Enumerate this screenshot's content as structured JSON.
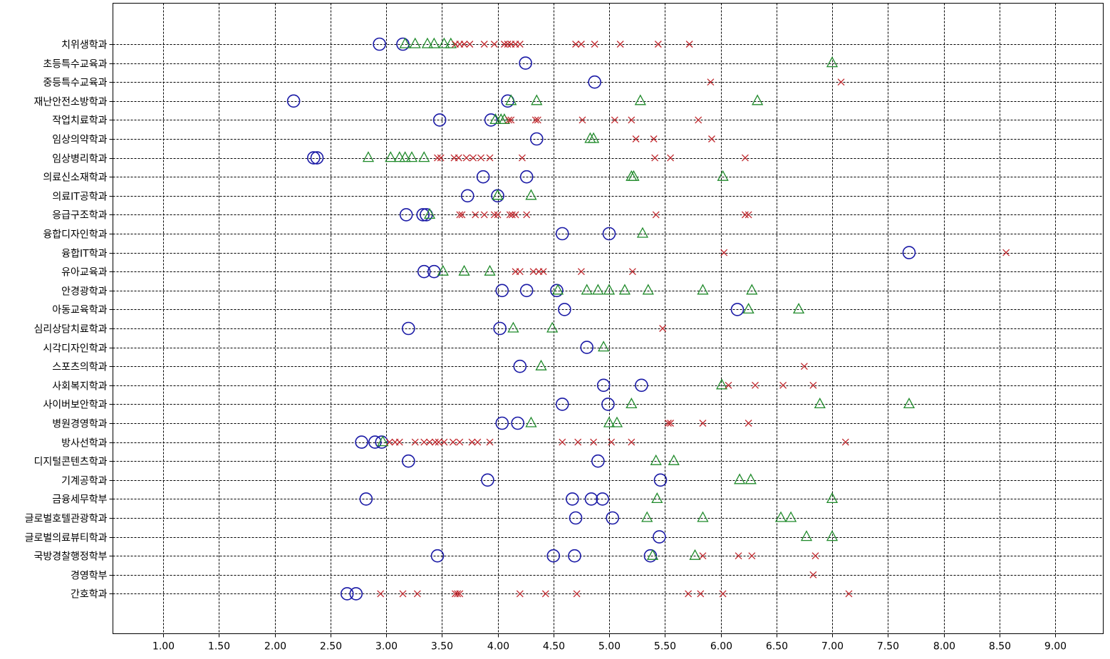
{
  "chart_data": {
    "type": "scatter",
    "title": "",
    "xlabel": "",
    "ylabel": "",
    "xlim": [
      0.55,
      9.45
    ],
    "x_ticks": [
      1.0,
      1.5,
      2.0,
      2.5,
      3.0,
      3.5,
      4.0,
      4.5,
      5.0,
      5.5,
      6.0,
      6.5,
      7.0,
      7.5,
      8.0,
      8.5,
      9.0
    ],
    "x_tick_labels": [
      "1.00",
      "1.50",
      "2.00",
      "2.50",
      "3.00",
      "3.50",
      "4.00",
      "4.50",
      "5.00",
      "5.50",
      "6.00",
      "6.50",
      "7.00",
      "7.50",
      "8.00",
      "8.50",
      "9.00"
    ],
    "grid": true,
    "legend": "none",
    "categories": [
      "치위생학과",
      "초등특수교육과",
      "중등특수교육과",
      "재난안전소방학과",
      "작업치료학과",
      "임상의약학과",
      "임상병리학과",
      "의료신소재학과",
      "의료IT공학과",
      "응급구조학과",
      "융합디자인학과",
      "융합IT학과",
      "유아교육과",
      "안경광학과",
      "아동교육학과",
      "심리상담치료학과",
      "시각디자인학과",
      "스포츠의학과",
      "사회복지학과",
      "사이버보안학과",
      "병원경영학과",
      "방사선학과",
      "디지털콘텐츠학과",
      "기계공학과",
      "금융세무학부",
      "글로벌호텔관광학과",
      "글로벌의료뷰티학과",
      "국방경찰행정학부",
      "경영학부",
      "간호학과"
    ],
    "series": [
      {
        "marker": "circle",
        "color": "#1a1aa6",
        "points": [
          {
            "category": "치위생학과",
            "values": [
              2.94,
              3.15
            ]
          },
          {
            "category": "초등특수교육과",
            "values": [
              4.25
            ]
          },
          {
            "category": "중등특수교육과",
            "values": [
              4.87
            ]
          },
          {
            "category": "재난안전소방학과",
            "values": [
              2.17,
              4.09
            ]
          },
          {
            "category": "작업치료학과",
            "values": [
              3.48,
              3.94
            ]
          },
          {
            "category": "임상의약학과",
            "values": [
              4.35
            ]
          },
          {
            "category": "임상병리학과",
            "values": [
              2.35,
              2.38
            ]
          },
          {
            "category": "의료신소재학과",
            "values": [
              3.87,
              4.26
            ]
          },
          {
            "category": "의료IT공학과",
            "values": [
              3.73,
              4.0
            ]
          },
          {
            "category": "응급구조학과",
            "values": [
              3.18,
              3.33,
              3.36
            ]
          },
          {
            "category": "융합디자인학과",
            "values": [
              4.58,
              5.0
            ]
          },
          {
            "category": "융합IT학과",
            "values": [
              7.69
            ]
          },
          {
            "category": "유아교육과",
            "values": [
              3.34,
              3.43
            ]
          },
          {
            "category": "안경광학과",
            "values": [
              4.04,
              4.26,
              4.53
            ]
          },
          {
            "category": "아동교육학과",
            "values": [
              4.6,
              6.15
            ]
          },
          {
            "category": "심리상담치료학과",
            "values": [
              3.2,
              4.02
            ]
          },
          {
            "category": "시각디자인학과",
            "values": [
              4.8
            ]
          },
          {
            "category": "스포츠의학과",
            "values": [
              4.2
            ]
          },
          {
            "category": "사회복지학과",
            "values": [
              4.95,
              5.29
            ]
          },
          {
            "category": "사이버보안학과",
            "values": [
              4.58,
              4.99
            ]
          },
          {
            "category": "병원경영학과",
            "values": [
              4.04,
              4.18
            ]
          },
          {
            "category": "방사선학과",
            "values": [
              2.78,
              2.9,
              2.96
            ]
          },
          {
            "category": "디지털콘텐츠학과",
            "values": [
              3.2,
              4.9
            ]
          },
          {
            "category": "기계공학과",
            "values": [
              3.91,
              5.46
            ]
          },
          {
            "category": "금융세무학부",
            "values": [
              2.82,
              4.67,
              4.84,
              4.94
            ]
          },
          {
            "category": "글로벌호텔관광학과",
            "values": [
              4.7,
              5.03
            ]
          },
          {
            "category": "글로벌의료뷰티학과",
            "values": [
              5.45
            ]
          },
          {
            "category": "국방경찰행정학부",
            "values": [
              3.46,
              4.5,
              4.69,
              5.37
            ]
          },
          {
            "category": "간호학과",
            "values": [
              2.65,
              2.73
            ]
          }
        ]
      },
      {
        "marker": "triangle",
        "color": "#1f8a2a",
        "points": [
          {
            "category": "치위생학과",
            "values": [
              3.17,
              3.26,
              3.37,
              3.43,
              3.52,
              3.58
            ]
          },
          {
            "category": "초등특수교육과",
            "values": [
              7.0
            ]
          },
          {
            "category": "재난안전소방학과",
            "values": [
              4.12,
              4.35,
              5.28,
              6.33
            ]
          },
          {
            "category": "작업치료학과",
            "values": [
              3.98,
              4.03,
              4.06
            ]
          },
          {
            "category": "임상의약학과",
            "values": [
              4.83,
              4.86
            ]
          },
          {
            "category": "임상병리학과",
            "values": [
              2.84,
              3.04,
              3.12,
              3.17,
              3.23,
              3.34
            ]
          },
          {
            "category": "의료신소재학과",
            "values": [
              5.2,
              5.22,
              6.02
            ]
          },
          {
            "category": "의료IT공학과",
            "values": [
              4.0,
              4.3
            ]
          },
          {
            "category": "응급구조학과",
            "values": [
              3.39
            ]
          },
          {
            "category": "융합디자인학과",
            "values": [
              5.3
            ]
          },
          {
            "category": "유아교육과",
            "values": [
              3.51,
              3.7,
              3.93
            ]
          },
          {
            "category": "안경광학과",
            "values": [
              4.54,
              4.8,
              4.9,
              5.0,
              5.14,
              5.35,
              5.84,
              6.28
            ]
          },
          {
            "category": "아동교육학과",
            "values": [
              6.25,
              6.7
            ]
          },
          {
            "category": "심리상담치료학과",
            "values": [
              4.14,
              4.49
            ]
          },
          {
            "category": "시각디자인학과",
            "values": [
              4.95
            ]
          },
          {
            "category": "스포츠의학과",
            "values": [
              4.39
            ]
          },
          {
            "category": "사회복지학과",
            "values": [
              6.01
            ]
          },
          {
            "category": "사이버보안학과",
            "values": [
              5.2,
              6.89,
              7.69
            ]
          },
          {
            "category": "병원경영학과",
            "values": [
              4.3,
              5.0,
              5.07
            ]
          },
          {
            "category": "방사선학과",
            "values": [
              2.97
            ]
          },
          {
            "category": "디지털콘텐츠학과",
            "values": [
              5.42,
              5.58
            ]
          },
          {
            "category": "기계공학과",
            "values": [
              6.17,
              6.27
            ]
          },
          {
            "category": "금융세무학부",
            "values": [
              5.43,
              7.0
            ]
          },
          {
            "category": "글로벌호텔관광학과",
            "values": [
              5.34,
              5.84,
              6.54,
              6.63
            ]
          },
          {
            "category": "글로벌의료뷰티학과",
            "values": [
              6.77,
              7.0
            ]
          },
          {
            "category": "국방경찰행정학부",
            "values": [
              5.39,
              5.77
            ]
          }
        ]
      },
      {
        "marker": "x",
        "color": "#c0282d",
        "points": [
          {
            "category": "치위생학과",
            "values": [
              3.62,
              3.66,
              3.7,
              3.75,
              3.88,
              3.97,
              4.06,
              4.09,
              4.12,
              4.16,
              4.2,
              4.7,
              4.75,
              4.87,
              5.1,
              5.44,
              5.72
            ]
          },
          {
            "category": "중등특수교육과",
            "values": [
              5.91,
              7.08
            ]
          },
          {
            "category": "작업치료학과",
            "values": [
              4.1,
              4.12,
              4.34,
              4.36,
              4.76,
              5.05,
              5.2,
              5.8
            ]
          },
          {
            "category": "임상의약학과",
            "values": [
              5.24,
              5.4,
              5.92
            ]
          },
          {
            "category": "임상병리학과",
            "values": [
              3.46,
              3.49,
              3.61,
              3.65,
              3.72,
              3.78,
              3.85,
              3.93,
              4.22,
              5.41,
              5.55,
              6.22
            ]
          },
          {
            "category": "응급구조학과",
            "values": [
              3.66,
              3.68,
              3.8,
              3.88,
              3.97,
              4.0,
              4.11,
              4.13,
              4.16,
              4.26,
              5.42,
              6.22,
              6.25
            ]
          },
          {
            "category": "융합IT학과",
            "values": [
              6.03,
              8.56
            ]
          },
          {
            "category": "유아교육과",
            "values": [
              4.16,
              4.2,
              4.32,
              4.37,
              4.41,
              4.75,
              5.21
            ]
          },
          {
            "category": "심리상담치료학과",
            "values": [
              5.48
            ]
          },
          {
            "category": "스포츠의학과",
            "values": [
              6.75
            ]
          },
          {
            "category": "사회복지학과",
            "values": [
              6.07,
              6.31,
              6.56,
              6.83
            ]
          },
          {
            "category": "병원경영학과",
            "values": [
              5.53,
              5.55,
              5.84,
              6.25
            ]
          },
          {
            "category": "방사선학과",
            "values": [
              3.03,
              3.08,
              3.12,
              3.26,
              3.34,
              3.39,
              3.44,
              3.47,
              3.52,
              3.6,
              3.66,
              3.77,
              3.82,
              3.93,
              4.58,
              4.72,
              4.86,
              5.02,
              5.2,
              7.12
            ]
          },
          {
            "category": "국방경찰행정학부",
            "values": [
              5.84,
              6.16,
              6.28,
              6.85
            ]
          },
          {
            "category": "경영학부",
            "values": [
              6.83
            ]
          },
          {
            "category": "간호학과",
            "values": [
              2.95,
              3.15,
              3.28,
              3.62,
              3.64,
              3.66,
              4.2,
              4.43,
              4.71,
              5.71,
              5.82,
              6.02,
              7.15
            ]
          }
        ]
      }
    ]
  }
}
